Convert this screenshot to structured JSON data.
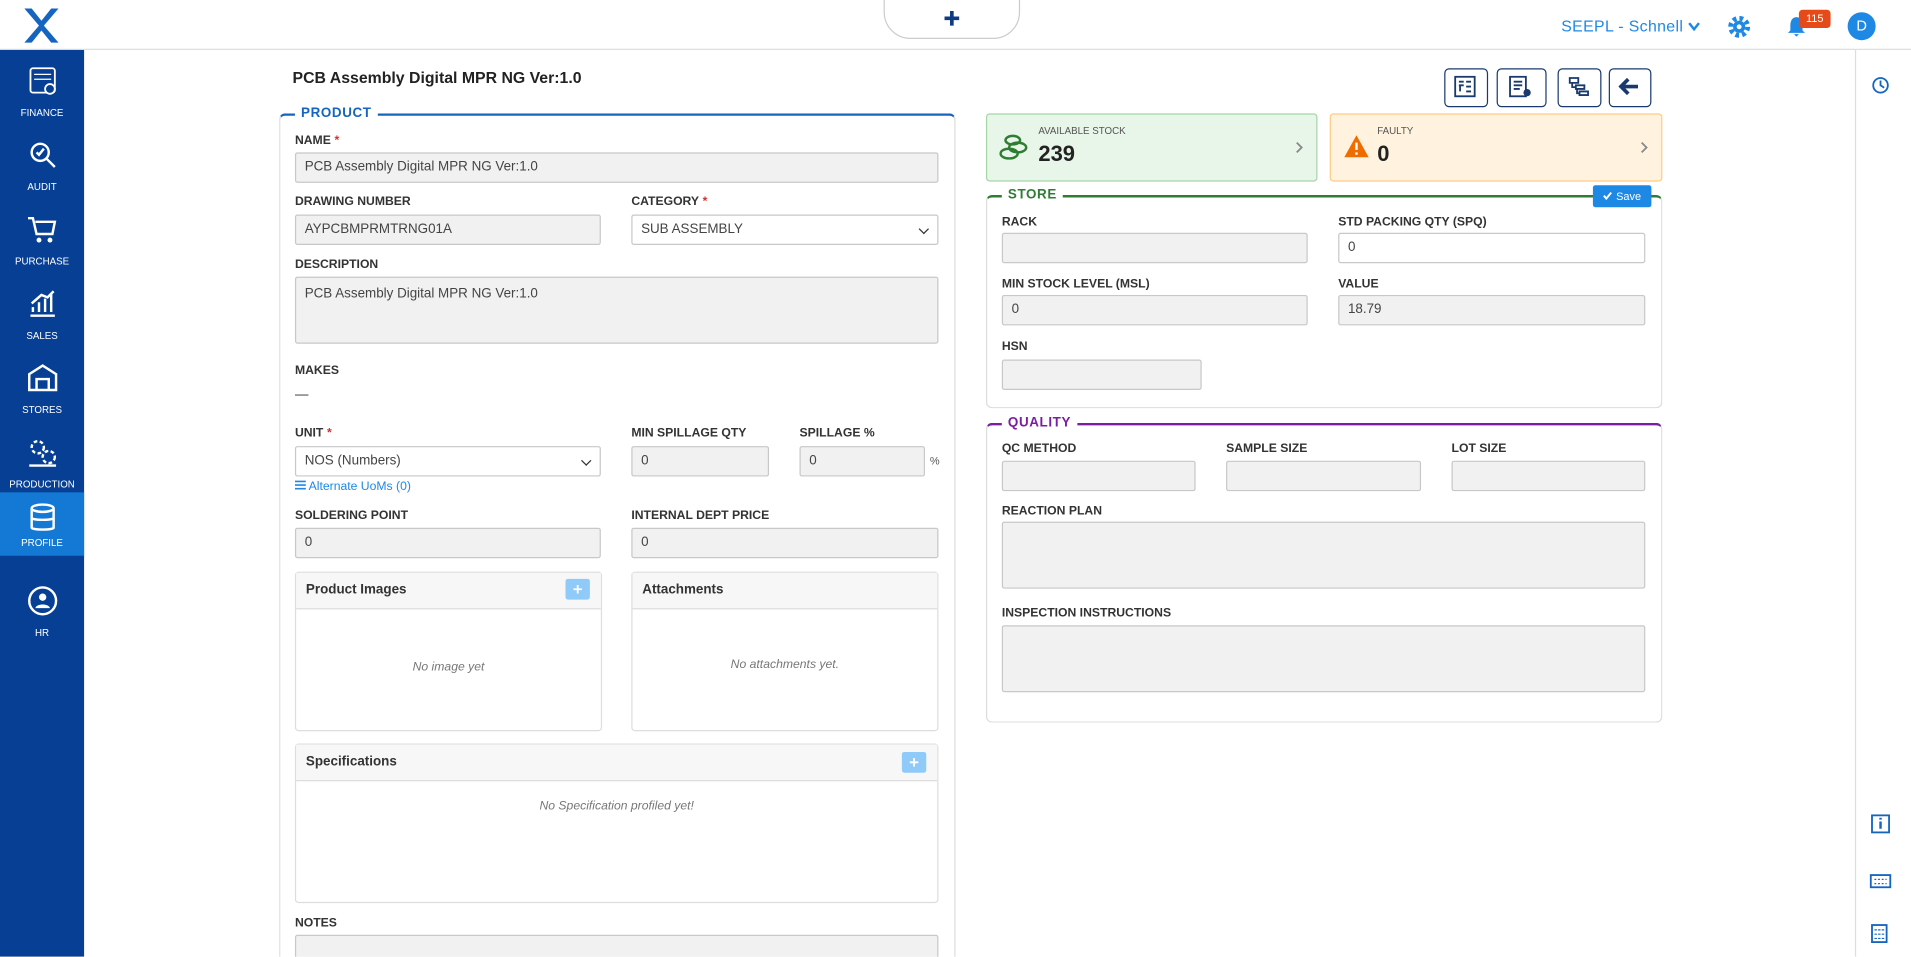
{
  "header": {
    "org_selector": "SEEPL - Schnell",
    "notification_count": "115",
    "avatar": "D"
  },
  "sidebar": {
    "items": [
      "FINANCE",
      "AUDIT",
      "PURCHASE",
      "SALES",
      "STORES",
      "PRODUCTION",
      "PROFILE",
      "HR"
    ],
    "active_item": 6
  },
  "page_title": "PCB Assembly Digital MPR NG Ver:1.0",
  "required_mark": "*",
  "product": {
    "section": "PRODUCT",
    "name": {
      "label": "NAME",
      "value": "PCB Assembly Digital MPR NG Ver:1.0"
    },
    "drawing_number": {
      "label": "DRAWING NUMBER",
      "value": "AYPCBMPRMTRNG01A"
    },
    "category": {
      "label": "CATEGORY",
      "value": "SUB ASSEMBLY"
    },
    "description": {
      "label": "DESCRIPTION",
      "value": "PCB Assembly Digital MPR NG Ver:1.0"
    },
    "makes": {
      "label": "MAKES",
      "value": "—"
    },
    "unit": {
      "label": "UNIT",
      "value": "NOS (Numbers)"
    },
    "min_spillage_qty": {
      "label": "MIN SPILLAGE QTY",
      "value": "0"
    },
    "spillage_pct": {
      "label": "SPILLAGE %",
      "value": "0",
      "suffix": "%"
    },
    "alternate_uoms": "Alternate UoMs (0)",
    "soldering_point": {
      "label": "SOLDERING POINT",
      "value": "0"
    },
    "internal_dept_price": {
      "label": "INTERNAL DEPT PRICE",
      "value": "0"
    },
    "product_images": {
      "title": "Product Images",
      "empty": "No image yet"
    },
    "attachments": {
      "title": "Attachments",
      "empty": "No attachments yet."
    },
    "specifications": {
      "title": "Specifications",
      "empty": "No Specification profiled yet!"
    },
    "notes": {
      "label": "NOTES"
    }
  },
  "stock": {
    "available": {
      "label": "AVAILABLE STOCK",
      "value": "239"
    },
    "faulty": {
      "label": "FAULTY",
      "value": "0"
    }
  },
  "store": {
    "section": "STORE",
    "save": "Save",
    "rack": {
      "label": "RACK",
      "value": ""
    },
    "spq": {
      "label": "STD PACKING QTY (SPQ)",
      "value": "0"
    },
    "msl": {
      "label": "MIN STOCK LEVEL (MSL)",
      "value": "0"
    },
    "value": {
      "label": "VALUE",
      "value": "18.79"
    },
    "hsn": {
      "label": "HSN",
      "value": ""
    }
  },
  "quality": {
    "section": "QUALITY",
    "qc_method": {
      "label": "QC METHOD"
    },
    "sample_size": {
      "label": "SAMPLE SIZE"
    },
    "lot_size": {
      "label": "LOT SIZE"
    },
    "reaction_plan": {
      "label": "REACTION PLAN"
    },
    "inspection_instructions": {
      "label": "INSPECTION INSTRUCTIONS"
    }
  }
}
